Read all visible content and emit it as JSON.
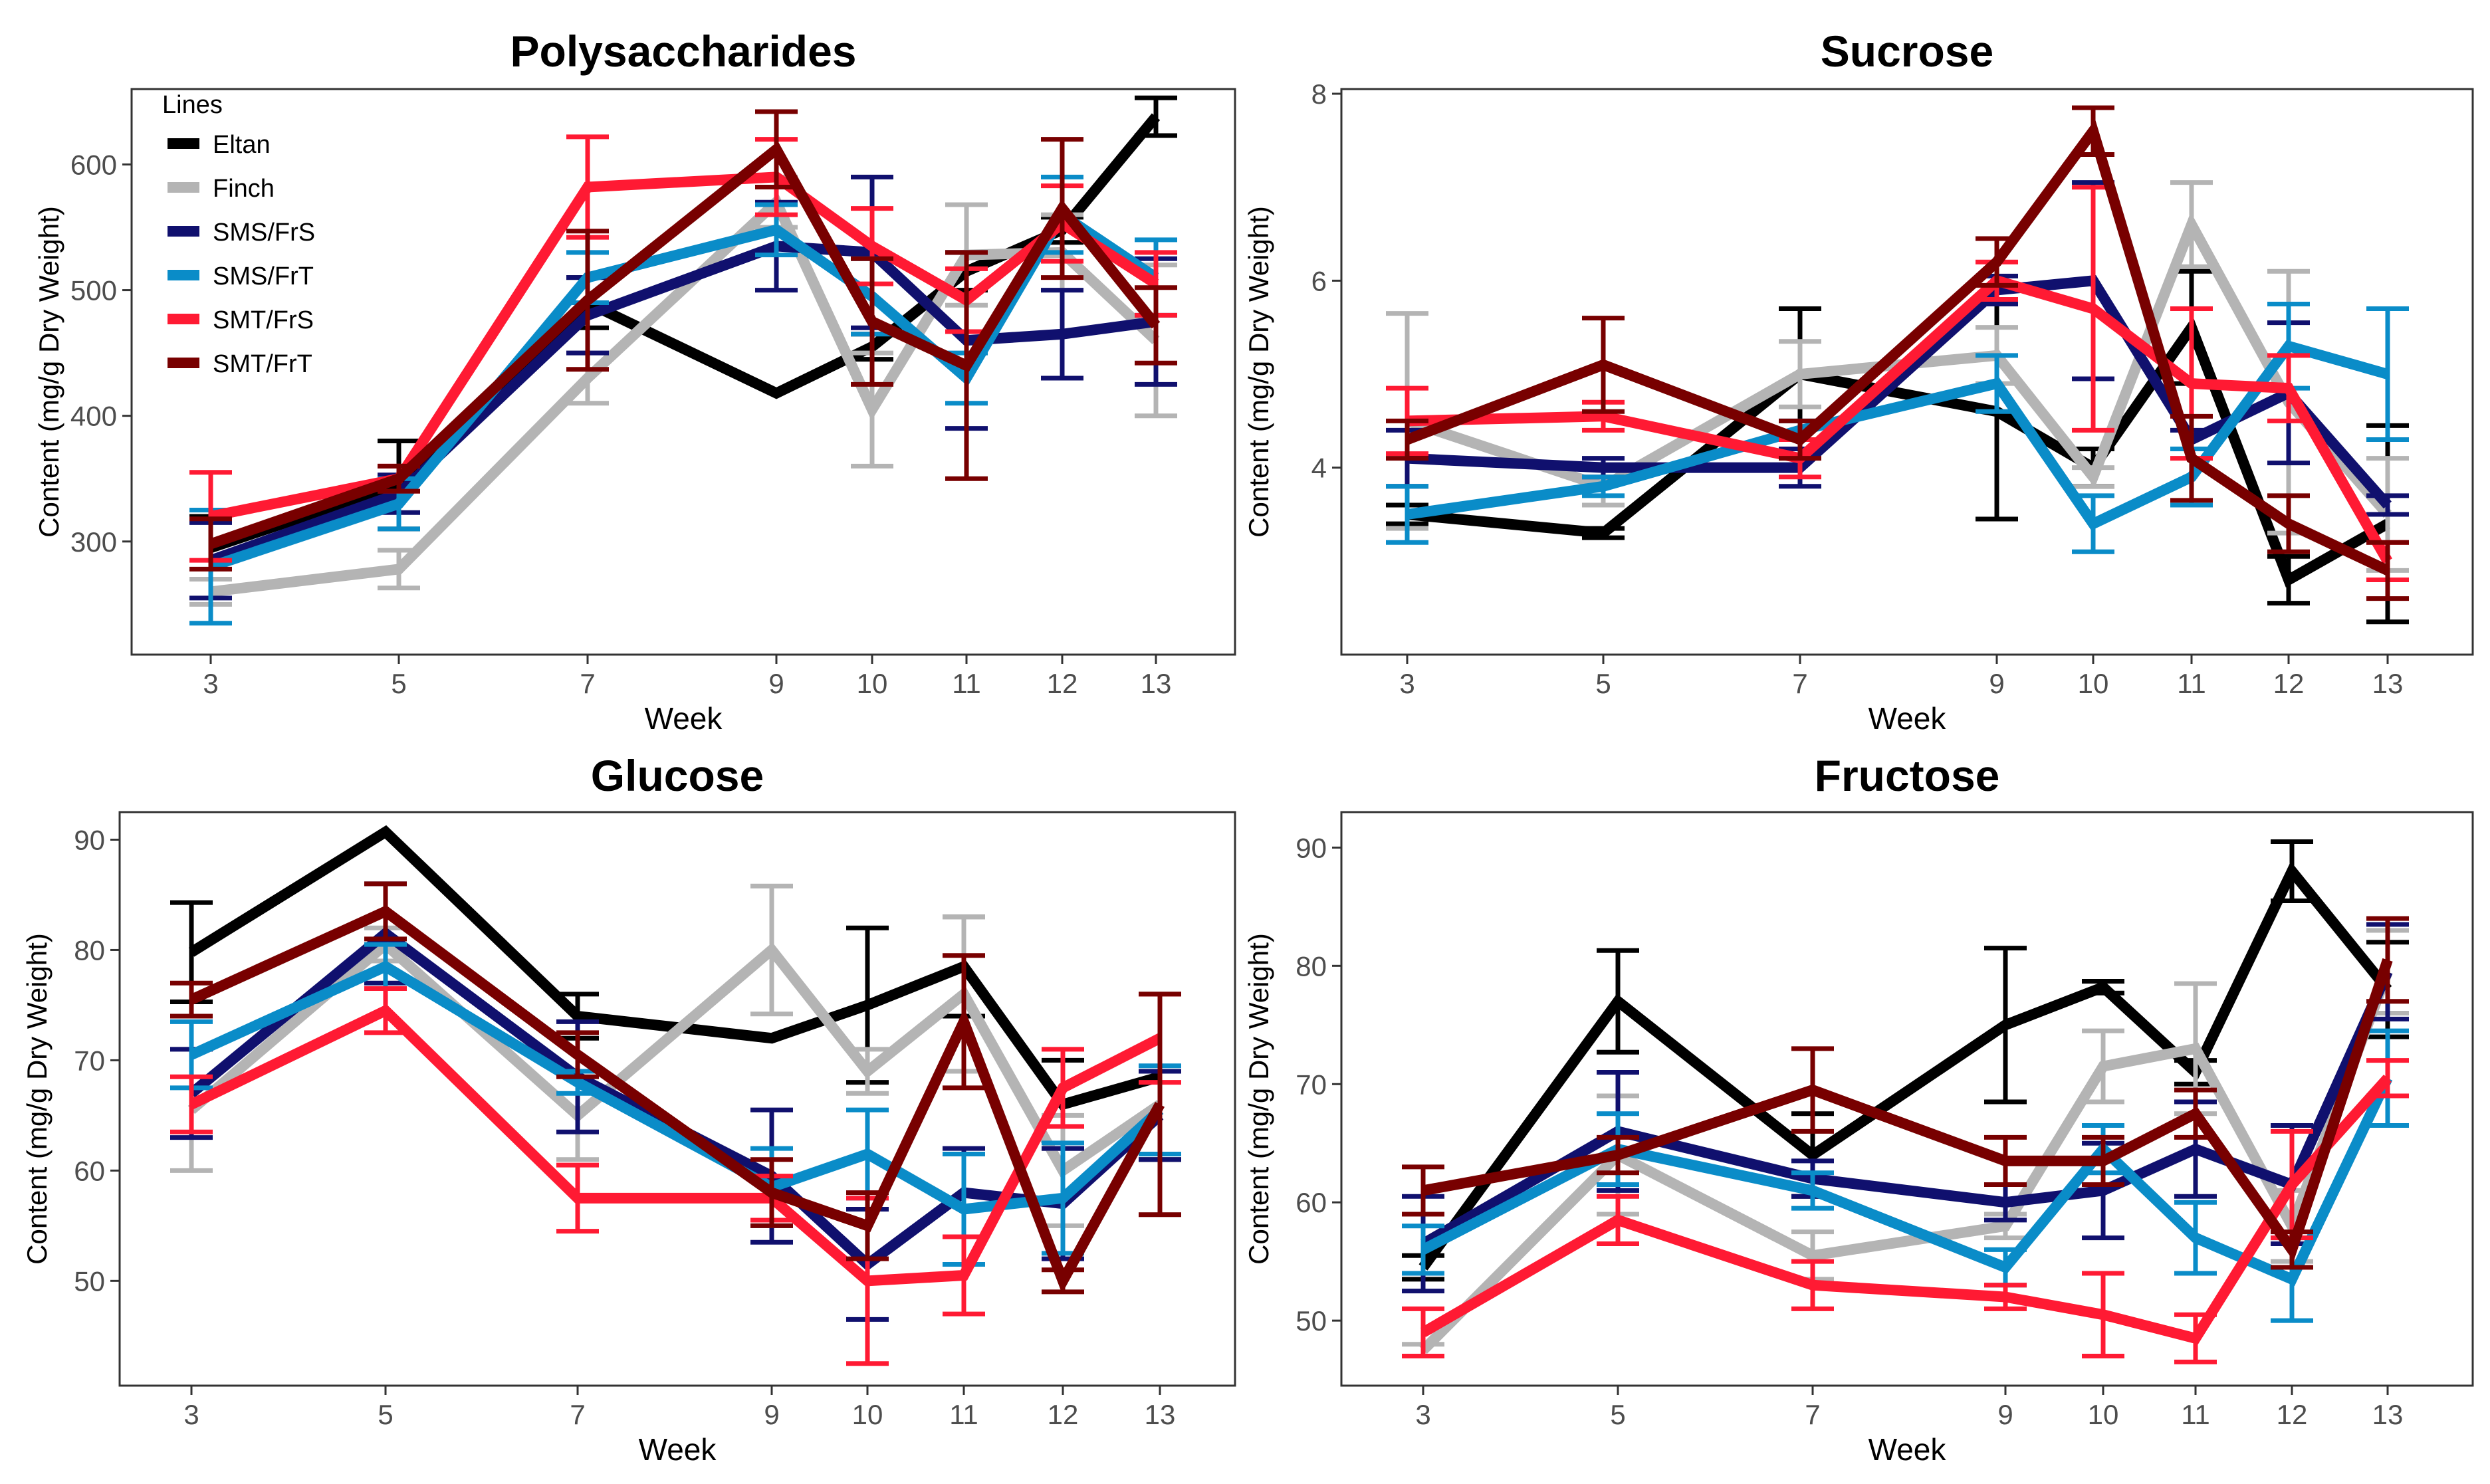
{
  "legend": {
    "title": "Lines",
    "placement": "top-left of first panel",
    "entries": [
      {
        "name": "Eltan",
        "color": "#000000"
      },
      {
        "name": "Finch",
        "color": "#b4b4b4"
      },
      {
        "name": "SMS/FrS",
        "color": "#10106e"
      },
      {
        "name": "SMS/FrT",
        "color": "#0a8cc8"
      },
      {
        "name": "SMT/FrS",
        "color": "#ff1a33"
      },
      {
        "name": "SMT/FrT",
        "color": "#780000"
      }
    ]
  },
  "chart_data": [
    {
      "type": "line",
      "title": "Polysaccharides",
      "xlabel": "Week",
      "ylabel": "Content (mg/g Dry Weight)",
      "categories": [
        "3",
        "5",
        "7",
        "9",
        "10",
        "11",
        "12",
        "13"
      ],
      "ylim": [
        210,
        660
      ],
      "yticks": [
        300,
        400,
        500,
        600
      ],
      "grid": false,
      "series": [
        {
          "name": "Eltan",
          "values": [
            295,
            345,
            490,
            418,
            455,
            515,
            548,
            638
          ],
          "err": [
            25,
            35,
            20,
            0,
            10,
            15,
            10,
            15
          ]
        },
        {
          "name": "Finch",
          "values": [
            260,
            278,
            430,
            570,
            405,
            528,
            530,
            460
          ],
          "err": [
            10,
            15,
            20,
            20,
            45,
            40,
            30,
            60
          ]
        },
        {
          "name": "SMS/FrS",
          "values": [
            285,
            338,
            480,
            535,
            530,
            460,
            465,
            475
          ],
          "err": [
            30,
            15,
            30,
            35,
            60,
            70,
            35,
            50
          ]
        },
        {
          "name": "SMS/FrT",
          "values": [
            280,
            330,
            510,
            548,
            495,
            430,
            560,
            510
          ],
          "err": [
            45,
            20,
            20,
            20,
            30,
            20,
            30,
            30
          ]
        },
        {
          "name": "SMT/FrS",
          "values": [
            320,
            350,
            582,
            590,
            535,
            492,
            553,
            505
          ],
          "err": [
            35,
            10,
            40,
            30,
            30,
            25,
            30,
            25
          ]
        },
        {
          "name": "SMT/FrT",
          "values": [
            298,
            350,
            492,
            612,
            475,
            440,
            565,
            472
          ],
          "err": [
            20,
            10,
            55,
            30,
            50,
            90,
            55,
            30
          ]
        }
      ]
    },
    {
      "type": "line",
      "title": "Sucrose",
      "xlabel": "Week",
      "ylabel": "Content (mg/g Dry Weight)",
      "categories": [
        "3",
        "5",
        "7",
        "9",
        "10",
        "11",
        "12",
        "13"
      ],
      "ylim": [
        2.0,
        8.05
      ],
      "yticks": [
        4,
        6,
        8
      ],
      "grid": false,
      "series": [
        {
          "name": "Eltan",
          "values": [
            3.5,
            3.3,
            5.0,
            4.6,
            4.0,
            5.5,
            2.8,
            3.4
          ],
          "err": [
            0.1,
            0.05,
            0.7,
            1.15,
            0.2,
            0.6,
            0.25,
            1.05
          ]
        },
        {
          "name": "Finch",
          "values": [
            4.5,
            3.8,
            5.0,
            5.2,
            3.9,
            6.6,
            4.7,
            3.5
          ],
          "err": [
            1.15,
            0.2,
            0.35,
            0.3,
            0.1,
            0.45,
            1.4,
            0.6
          ]
        },
        {
          "name": "SMS/FrS",
          "values": [
            4.1,
            4.0,
            4.0,
            5.9,
            6.0,
            4.3,
            4.8,
            3.6
          ],
          "err": [
            0.3,
            0.1,
            0.2,
            0.15,
            1.05,
            0.1,
            0.75,
            0.1
          ]
        },
        {
          "name": "SMS/FrT",
          "values": [
            3.5,
            3.8,
            4.4,
            4.9,
            3.4,
            3.9,
            5.3,
            5.0
          ],
          "err": [
            0.3,
            0.1,
            0.1,
            0.3,
            0.3,
            0.3,
            0.45,
            0.7
          ]
        },
        {
          "name": "SMT/FrS",
          "values": [
            4.5,
            4.55,
            4.1,
            6.0,
            5.7,
            4.9,
            4.85,
            3.0
          ],
          "err": [
            0.35,
            0.15,
            0.2,
            0.2,
            1.3,
            0.8,
            0.35,
            0.2
          ]
        },
        {
          "name": "SMT/FrT",
          "values": [
            4.3,
            5.1,
            4.3,
            6.2,
            7.6,
            4.1,
            3.4,
            2.9
          ],
          "err": [
            0.2,
            0.5,
            0.2,
            0.25,
            0.25,
            0.45,
            0.3,
            0.3
          ]
        }
      ]
    },
    {
      "type": "line",
      "title": "Glucose",
      "xlabel": "Week",
      "ylabel": "Content (mg/g Dry Weight)",
      "categories": [
        "3",
        "5",
        "7",
        "9",
        "10",
        "11",
        "12",
        "13"
      ],
      "ylim": [
        40.5,
        92.5
      ],
      "yticks": [
        50,
        60,
        70,
        80,
        90
      ],
      "grid": false,
      "series": [
        {
          "name": "Eltan",
          "values": [
            79.8,
            90.7,
            74,
            72,
            75,
            78.5,
            66,
            68.5
          ],
          "err": [
            4.5,
            0,
            2,
            0,
            7,
            4.5,
            4,
            7.5
          ]
        },
        {
          "name": "Finch",
          "values": [
            65.5,
            80.5,
            65,
            80,
            69,
            76,
            60,
            66
          ],
          "err": [
            5.5,
            1.5,
            4,
            5.8,
            2,
            7,
            5,
            10
          ]
        },
        {
          "name": "SMS/FrS",
          "values": [
            67,
            81.5,
            68.5,
            59.5,
            51.5,
            58,
            57,
            65
          ],
          "err": [
            4,
            4.5,
            5,
            6,
            5,
            4,
            5,
            4
          ]
        },
        {
          "name": "SMS/FrT",
          "values": [
            70.5,
            78.5,
            68,
            58.5,
            61.5,
            56.5,
            57.5,
            65.5
          ],
          "err": [
            3,
            2,
            1,
            3.5,
            4,
            5,
            5,
            4
          ]
        },
        {
          "name": "SMT/FrS",
          "values": [
            66,
            74.5,
            57.5,
            57.5,
            50,
            50.5,
            67.5,
            72
          ],
          "err": [
            2.5,
            2,
            3,
            2,
            7.5,
            3.5,
            3.5,
            4
          ]
        },
        {
          "name": "SMT/FrT",
          "values": [
            75.5,
            83.5,
            70.5,
            58,
            55,
            73.5,
            50,
            66
          ],
          "err": [
            1.5,
            2.5,
            2,
            3,
            3,
            6,
            1,
            10
          ]
        }
      ]
    },
    {
      "type": "line",
      "title": "Fructose",
      "xlabel": "Week",
      "ylabel": "Content (mg/g Dry Weight)",
      "categories": [
        "3",
        "5",
        "7",
        "9",
        "10",
        "11",
        "12",
        "13"
      ],
      "ylim": [
        44.5,
        93
      ],
      "yticks": [
        50,
        60,
        70,
        80,
        90
      ],
      "grid": false,
      "series": [
        {
          "name": "Eltan",
          "values": [
            54.5,
            77,
            64,
            75,
            78.2,
            71,
            88,
            78
          ],
          "err": [
            1,
            4.3,
            3.5,
            6.5,
            0.5,
            1,
            2.5,
            4
          ]
        },
        {
          "name": "Finch",
          "values": [
            47.5,
            64,
            55.5,
            58,
            71.5,
            73,
            58,
            79.5
          ],
          "err": [
            0.5,
            5,
            2,
            1,
            3,
            5.5,
            3,
            3.5
          ]
        },
        {
          "name": "SMS/FrS",
          "values": [
            56.5,
            66,
            62,
            60,
            61,
            64.5,
            61.5,
            79.5
          ],
          "err": [
            4,
            5,
            1.5,
            1.5,
            4,
            4,
            5,
            4
          ]
        },
        {
          "name": "SMS/FrT",
          "values": [
            56,
            64.5,
            61,
            54.5,
            64.5,
            57,
            53.5,
            70.5
          ],
          "err": [
            2,
            3,
            1.5,
            1.5,
            2,
            3,
            3.5,
            4
          ]
        },
        {
          "name": "SMT/FrS",
          "values": [
            49,
            58.5,
            53,
            52,
            50.5,
            48.5,
            61.5,
            70.5
          ],
          "err": [
            2,
            2,
            2,
            1,
            3.5,
            2,
            4.5,
            1.5
          ]
        },
        {
          "name": "SMT/FrT",
          "values": [
            61,
            64,
            69.5,
            63.5,
            63.5,
            67.5,
            56,
            80.5
          ],
          "err": [
            2,
            1.5,
            3.5,
            2,
            2,
            2,
            1.5,
            3.5
          ]
        }
      ]
    }
  ]
}
